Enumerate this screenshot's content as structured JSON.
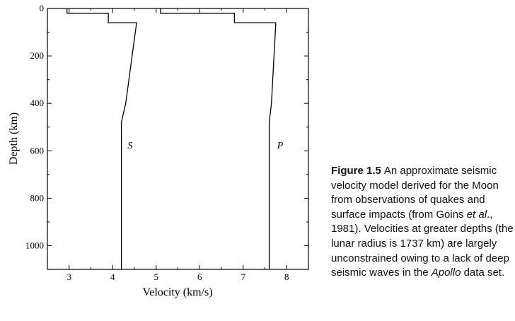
{
  "chart_data": {
    "type": "line",
    "title": "",
    "xlabel": "Velocity (km/s)",
    "ylabel": "Depth (km)",
    "xlim": [
      2.5,
      8.5
    ],
    "ylim": [
      0,
      1100
    ],
    "y_inverted": true,
    "xticks": [
      3,
      4,
      5,
      6,
      7,
      8
    ],
    "yticks": [
      0,
      200,
      400,
      600,
      800,
      1000
    ],
    "grid": false,
    "legend": "none",
    "series": [
      {
        "name": "S",
        "x": [
          2.95,
          2.95,
          3.9,
          3.9,
          4.55,
          4.3,
          4.2,
          4.2
        ],
        "y": [
          0,
          20,
          20,
          60,
          60,
          400,
          480,
          1100
        ]
      },
      {
        "name": "P",
        "x": [
          5.1,
          5.1,
          6.8,
          6.8,
          7.75,
          7.65,
          7.6,
          7.6
        ],
        "y": [
          0,
          20,
          20,
          60,
          60,
          400,
          480,
          1100
        ]
      }
    ],
    "annotations": [
      {
        "text": "S",
        "x": 4.4,
        "y": 590
      },
      {
        "text": "P",
        "x": 7.85,
        "y": 590
      }
    ]
  },
  "caption": {
    "figure_label": "Figure 1.5",
    "text_1": "An approximate seismic velocity model derived for the Moon from observations of quakes and surface impacts (from Goins ",
    "et_al": "et al",
    "text_2": "., 1981). Velocities at greater depths (the lunar radius is 1737 km) are largely unconstrained owing to a lack of deep seismic waves in the ",
    "apollo": "Apollo",
    "text_3": " data set."
  }
}
